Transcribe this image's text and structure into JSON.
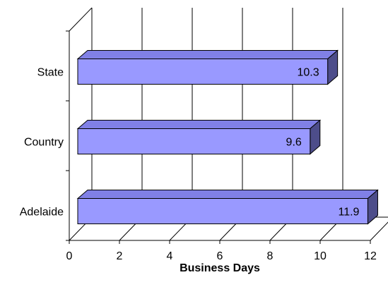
{
  "chart_data": {
    "type": "bar",
    "orientation": "horizontal",
    "style": "3d",
    "categories": [
      "State",
      "Country",
      "Adelaide"
    ],
    "values": [
      10.3,
      9.6,
      11.9
    ],
    "data_labels": [
      "10.3",
      "9.6",
      "11.9"
    ],
    "xlabel": "Business Days",
    "xlim": [
      0,
      12
    ],
    "xticks": [
      "0",
      "2",
      "4",
      "6",
      "8",
      "10",
      "12"
    ],
    "grid": "vertical",
    "legend": "none",
    "colors": {
      "bar_front": "#9999ff",
      "bar_top": "#8080e6",
      "bar_side": "#4d4d8a",
      "gridline": "#000000"
    }
  }
}
